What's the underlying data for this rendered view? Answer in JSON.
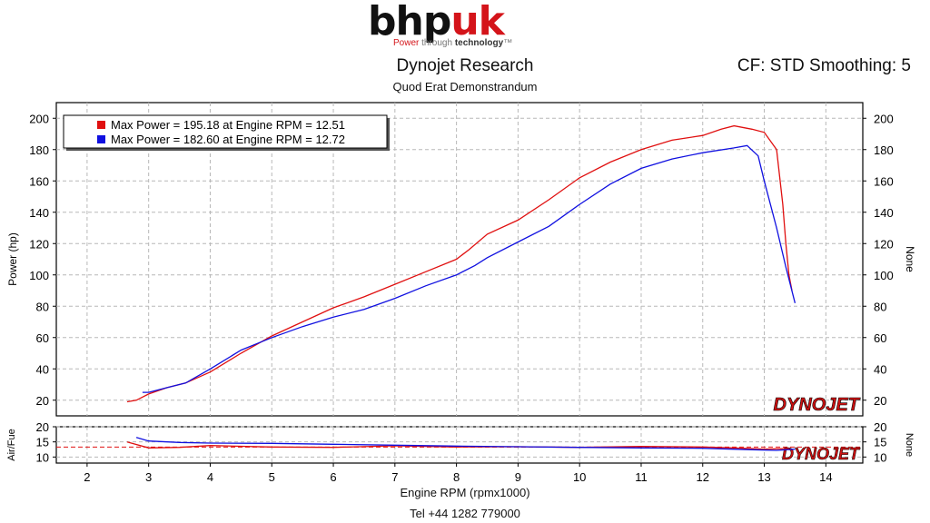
{
  "logo": {
    "brand_a": "bhp",
    "brand_b": "uk",
    "tag_a": "Power",
    "tag_b": "through",
    "tag_c": "technology",
    "tag_d": "™"
  },
  "header": {
    "title": "Dynojet Research",
    "subtitle": "Quod Erat Demonstrandum",
    "cf": "CF: STD Smoothing: 5"
  },
  "footer": {
    "phone": "Tel +44 1282 779000"
  },
  "watermark": "DYNOJET",
  "colors": {
    "run1": "#e01010",
    "run2": "#1010e0",
    "grid": "#b8b8b8"
  },
  "chart_data": [
    {
      "type": "line",
      "ylabel": "Power (hp)",
      "ylabel_right": "None",
      "xlim": [
        1.5,
        14.6
      ],
      "ylim": [
        10,
        210
      ],
      "yticks": [
        20,
        40,
        60,
        80,
        100,
        120,
        140,
        160,
        180,
        200
      ],
      "grid": true,
      "legend_position": "top-left",
      "legend": [
        "Max Power = 195.18 at Engine RPM = 12.51",
        "Max Power = 182.60 at Engine RPM = 12.72"
      ],
      "series": [
        {
          "color": "#e01010",
          "x": [
            2.65,
            2.8,
            3.0,
            3.3,
            3.6,
            4.0,
            4.5,
            5.0,
            5.5,
            6.0,
            6.5,
            7.0,
            7.5,
            8.0,
            8.2,
            8.5,
            9.0,
            9.5,
            10.0,
            10.5,
            11.0,
            11.5,
            12.0,
            12.3,
            12.51,
            12.8,
            13.0,
            13.2,
            13.3,
            13.35,
            13.4,
            13.45
          ],
          "y": [
            19,
            20,
            24,
            28,
            31,
            38,
            50,
            61,
            70,
            79,
            86,
            94,
            102,
            110,
            116,
            126,
            135,
            148,
            162,
            172,
            180,
            186,
            189,
            193,
            195.18,
            193,
            191,
            180,
            145,
            120,
            100,
            90
          ]
        },
        {
          "color": "#1010e0",
          "x": [
            2.9,
            3.0,
            3.3,
            3.6,
            4.0,
            4.5,
            5.0,
            5.5,
            6.0,
            6.5,
            7.0,
            7.5,
            8.0,
            8.3,
            8.5,
            9.0,
            9.5,
            10.0,
            10.5,
            11.0,
            11.5,
            12.0,
            12.5,
            12.72,
            12.9,
            13.0,
            13.2,
            13.35,
            13.5
          ],
          "y": [
            25,
            25,
            28,
            31,
            40,
            52,
            60,
            67,
            73,
            78,
            85,
            93,
            100,
            106,
            111,
            121,
            131,
            145,
            158,
            168,
            174,
            178,
            181,
            182.6,
            176,
            160,
            130,
            105,
            82
          ]
        }
      ]
    },
    {
      "type": "line",
      "ylabel": "Air/Fue",
      "ylabel_right": "None",
      "xlabel": "Engine RPM (rpmx1000)",
      "xlim": [
        1.5,
        14.6
      ],
      "ylim": [
        8,
        20
      ],
      "yticks": [
        10,
        15,
        20
      ],
      "xticks": [
        2,
        3,
        4,
        5,
        6,
        7,
        8,
        9,
        10,
        11,
        12,
        13,
        14
      ],
      "reference_line": 13.3,
      "series": [
        {
          "color": "#e01010",
          "x": [
            2.65,
            3.0,
            3.5,
            4.0,
            5.0,
            6.0,
            7.0,
            8.0,
            9.0,
            10.0,
            11.0,
            12.0,
            12.5,
            13.0,
            13.4
          ],
          "y": [
            15,
            13,
            13.2,
            13.8,
            13.3,
            13.2,
            13.7,
            13.3,
            13.4,
            13.2,
            13.5,
            13.3,
            13.0,
            12.6,
            12.8
          ]
        },
        {
          "color": "#1010e0",
          "x": [
            2.8,
            3.0,
            3.5,
            4.0,
            5.0,
            6.0,
            7.0,
            8.0,
            9.0,
            10.0,
            11.0,
            12.0,
            12.8,
            13.2,
            13.5
          ],
          "y": [
            16.5,
            15.3,
            14.8,
            14.6,
            14.5,
            14.2,
            13.9,
            13.6,
            13.4,
            13.2,
            13.0,
            12.9,
            12.4,
            12.2,
            12.6
          ]
        }
      ]
    }
  ]
}
